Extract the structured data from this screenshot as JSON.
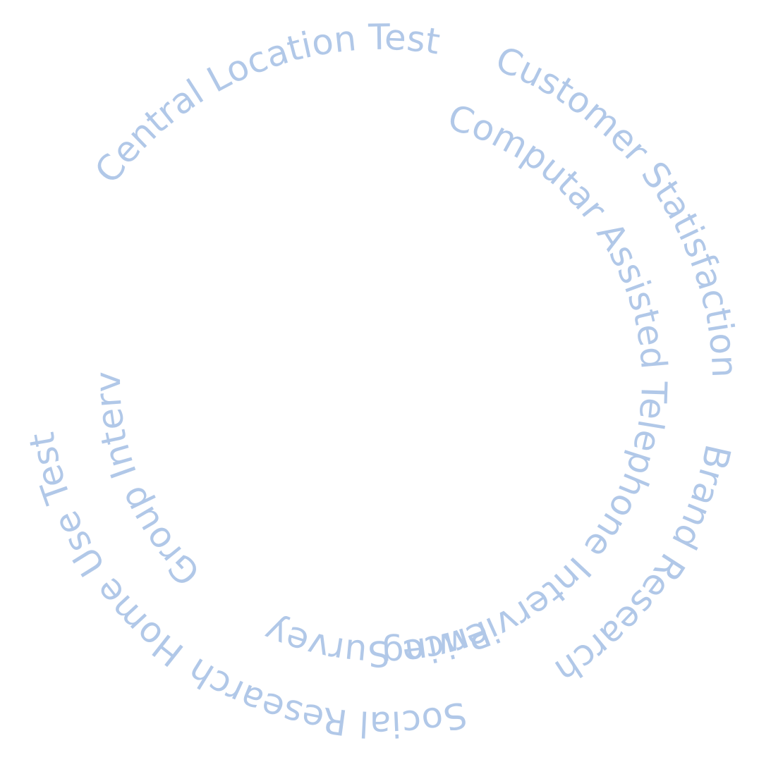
{
  "text_color": "#b1c8e8",
  "outer_ring": [
    {
      "key": "central_location_test",
      "label": "Central Location Test"
    },
    {
      "key": "customer_satisfaction",
      "label": "Customer Statisfaction"
    },
    {
      "key": "brand_research",
      "label": "Brand Research"
    },
    {
      "key": "social_research",
      "label": "Social Research"
    },
    {
      "key": "home_use_test",
      "label": "Home Use Test"
    }
  ],
  "inner_ring": [
    {
      "key": "computar_assisted",
      "label": "Computar Assisted Telephone Interviewing"
    },
    {
      "key": "price_survey",
      "label": "Price Survey"
    },
    {
      "key": "group_interview",
      "label": "Group Interview"
    }
  ]
}
